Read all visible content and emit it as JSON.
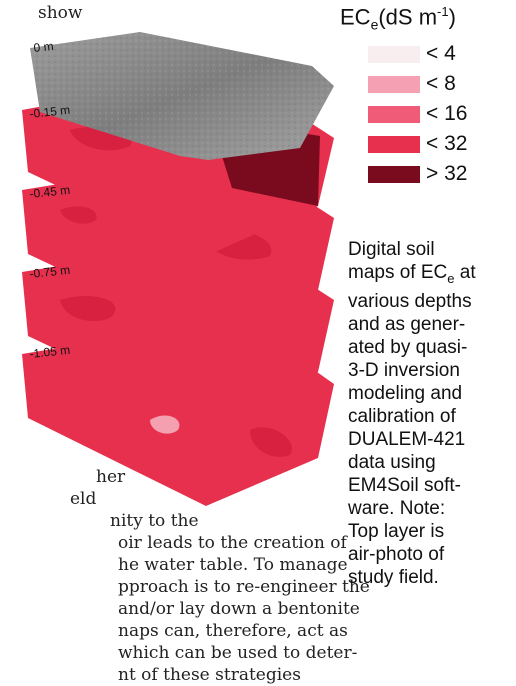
{
  "body_text": {
    "top": "show",
    "bottom_lines": [
      "her",
      "eld",
      "nity to the",
      "oir leads to the creation of",
      "he water table. To manage",
      "pproach is to re-engineer the",
      "and/or lay down a bentonite",
      "naps can, therefore, act as",
      "which can be used to deter-",
      "nt of these strategies"
    ]
  },
  "figure": {
    "layers": [
      {
        "label": "0 m",
        "type": "air-photo"
      },
      {
        "label": "-0.15 m",
        "type": "ec-map"
      },
      {
        "label": "-0.45 m",
        "type": "ec-map"
      },
      {
        "label": "-0.75 m",
        "type": "ec-map"
      },
      {
        "label": "-1.05 m",
        "type": "ec-map"
      }
    ],
    "colors": {
      "air_photo": "#8a8a8a",
      "base": "#e6304e",
      "dark": "#7a0a1e",
      "mid": "#d82040",
      "light": "#f4a0b0"
    }
  },
  "legend": {
    "title_main": "EC",
    "title_sub": "e",
    "title_unit_pre": "(dS m",
    "title_unit_sup": "-1",
    "title_unit_post": ")",
    "items": [
      {
        "label": "< 4",
        "color": "#f8eef0"
      },
      {
        "label": "< 8",
        "color": "#f6a0b4"
      },
      {
        "label": "< 16",
        "color": "#f05c78"
      },
      {
        "label": "< 32",
        "color": "#e6304e"
      },
      {
        "label": "> 32",
        "color": "#7a0a1e"
      }
    ]
  },
  "caption": {
    "line1": "Digital soil",
    "line2_pre": "maps of EC",
    "line2_sub": "e",
    "line2_post": " at",
    "lines_rest": [
      "various depths",
      "and as gener-",
      "ated by quasi-",
      "3-D inversion",
      "modeling and",
      "calibration of",
      "DUALEM-421",
      "data using",
      "EM4Soil soft-",
      "ware. Note:",
      "Top layer is",
      "air-photo of",
      "study field."
    ]
  }
}
